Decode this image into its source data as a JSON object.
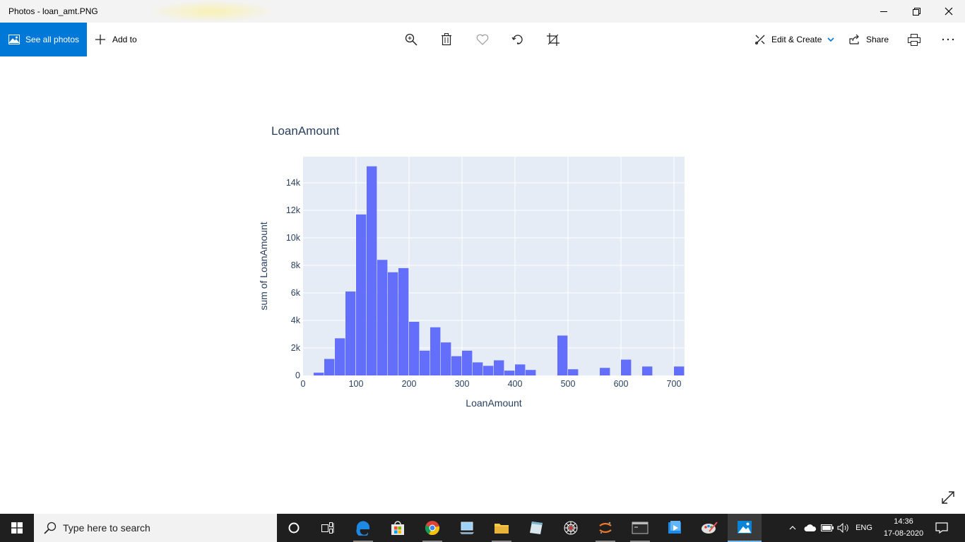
{
  "window": {
    "title": "Photos - loan_amt.PNG"
  },
  "toolbar": {
    "see_all_label": "See all photos",
    "add_to_label": "Add to",
    "edit_create_label": "Edit & Create",
    "share_label": "Share",
    "accent_color": "#0078d7"
  },
  "chart_data": {
    "type": "bar",
    "title": "LoanAmount",
    "xlabel": "LoanAmount",
    "ylabel": "sum of LoanAmount",
    "bin_width": 20,
    "x": [
      30,
      50,
      70,
      90,
      110,
      130,
      150,
      170,
      190,
      210,
      230,
      250,
      270,
      290,
      310,
      330,
      350,
      370,
      390,
      410,
      430,
      490,
      510,
      570,
      610,
      650,
      710
    ],
    "values": [
      200,
      1200,
      2700,
      6100,
      11700,
      15200,
      8400,
      7500,
      7800,
      3900,
      1800,
      3500,
      2400,
      1400,
      1800,
      950,
      700,
      1100,
      350,
      800,
      400,
      2900,
      450,
      550,
      1150,
      650,
      650
    ],
    "xlim": [
      0,
      720
    ],
    "ylim": [
      0,
      15900
    ],
    "x_ticks": [
      0,
      100,
      200,
      300,
      400,
      500,
      600,
      700
    ],
    "x_tick_labels": [
      "0",
      "100",
      "200",
      "300",
      "400",
      "500",
      "600",
      "700"
    ],
    "y_ticks": [
      0,
      2000,
      4000,
      6000,
      8000,
      10000,
      12000,
      14000
    ],
    "y_tick_labels": [
      "0",
      "2k",
      "4k",
      "6k",
      "8k",
      "10k",
      "12k",
      "14k"
    ],
    "bar_color": "#636efa",
    "plot_bg": "#e5ecf6",
    "grid": true,
    "legend": "none"
  },
  "taskbar": {
    "search_placeholder": "Type here to search",
    "language": "ENG",
    "time": "14:36",
    "date": "17-08-2020"
  }
}
